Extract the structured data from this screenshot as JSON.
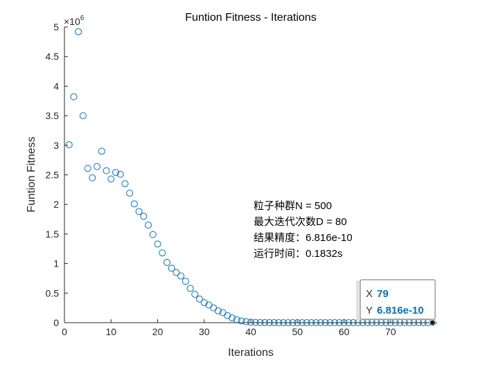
{
  "chart_data": {
    "type": "scatter",
    "title": "Funtion Fitness - Iterations",
    "xlabel": "Iterations",
    "ylabel": "Funtion Fitness",
    "xlim": [
      0,
      80
    ],
    "ylim": [
      0,
      5000000
    ],
    "x_ticks": [
      0,
      10,
      20,
      30,
      40,
      50,
      60,
      70
    ],
    "x_tick_labels": [
      "0",
      "10",
      "20",
      "30",
      "40",
      "50",
      "60",
      "70"
    ],
    "y_ticks": [
      0,
      500000,
      1000000,
      1500000,
      2000000,
      2500000,
      3000000,
      3500000,
      4000000,
      4500000,
      5000000
    ],
    "y_tick_labels": [
      "0",
      "0.5",
      "1",
      "1.5",
      "2",
      "2.5",
      "3",
      "3.5",
      "4",
      "4.5",
      "5"
    ],
    "y_exponent_base": "×10",
    "y_exponent_power": "6",
    "grid": false,
    "marker_color": "#0072BD",
    "points_y": [
      3010000,
      3820000,
      4920000,
      3500000,
      2610000,
      2450000,
      2640000,
      2900000,
      2570000,
      2430000,
      2540000,
      2510000,
      2350000,
      2190000,
      2010000,
      1880000,
      1800000,
      1650000,
      1490000,
      1330000,
      1180000,
      1020000,
      920000,
      850000,
      790000,
      700000,
      580000,
      480000,
      400000,
      340000,
      300000,
      250000,
      200000,
      170000,
      120000,
      80000,
      50000,
      30000,
      16000,
      9000,
      5000,
      3000,
      2000,
      1200,
      800,
      500,
      300,
      200,
      120,
      80,
      50,
      30,
      20,
      12,
      8,
      5,
      3,
      2,
      1,
      0.5,
      0.3,
      0.2,
      0.1,
      0.05,
      0.03,
      0.02,
      0.01,
      0.005,
      0.002,
      0.001,
      0.0005,
      0.0002,
      0.0001,
      5e-05,
      2e-05,
      1e-05,
      5e-06,
      1e-06,
      6.816e-10
    ],
    "annotation_lines": [
      "粒子种群N = 500",
      "最大迭代次数D = 80",
      "结果精度：6.816e-10",
      "运行时间：0.1832s"
    ],
    "datatip": {
      "x_key": "X",
      "x_value": "79",
      "y_key": "Y",
      "y_value": "6.816e-10",
      "value_color": "#0072BD",
      "point_x": 79,
      "point_y": 6.816e-10
    }
  }
}
